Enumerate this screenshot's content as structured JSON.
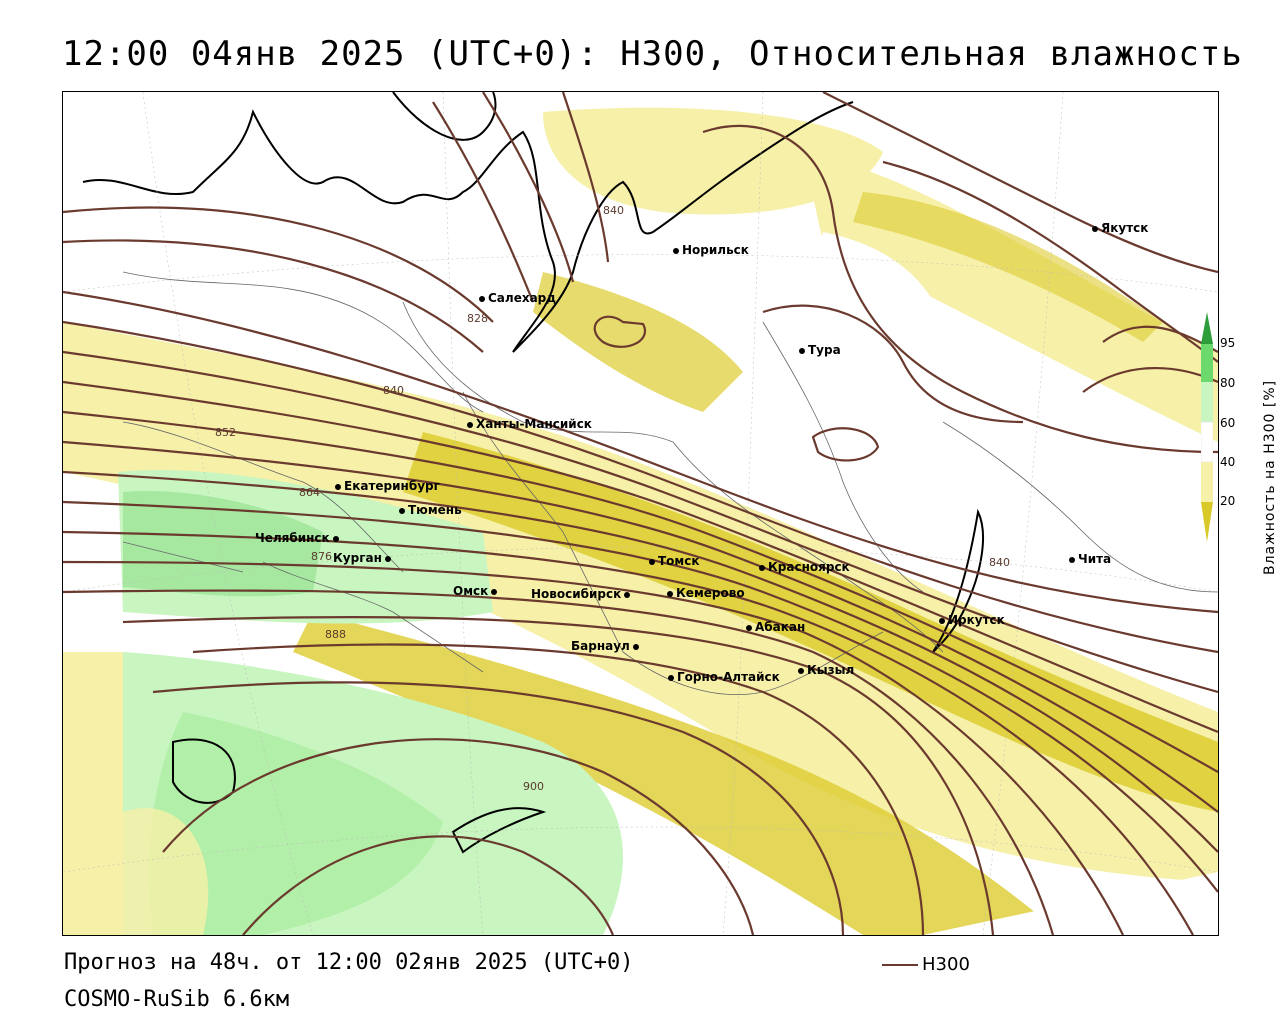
{
  "title": "12:00 04янв 2025 (UTC+0): H300, Относительная влажность",
  "footer": {
    "forecast": "Прогноз на 48ч. от 12:00 02янв 2025 (UTC+0)",
    "model": "COSMO-RuSib 6.6км",
    "legend_label": "H300"
  },
  "colorbar": {
    "title": "Влажность на H300 [%]",
    "ticks": [
      "95",
      "80",
      "60",
      "40",
      "20"
    ],
    "colors": {
      "c95": "#2e9e3a",
      "c80": "#6cd96c",
      "c60": "#c8f5c0",
      "c40": "#ffffff",
      "c20": "#f6f0a8",
      "c0": "#d8c828"
    }
  },
  "contour_labels": [
    "840",
    "828",
    "840",
    "852",
    "864",
    "876",
    "888",
    "900",
    "840"
  ],
  "cities": [
    {
      "name": "Норильск"
    },
    {
      "name": "Якутск"
    },
    {
      "name": "Салехард"
    },
    {
      "name": "Тура"
    },
    {
      "name": "Ханты-Мансийск"
    },
    {
      "name": "Екатеринбург"
    },
    {
      "name": "Тюмень"
    },
    {
      "name": "Челябинск"
    },
    {
      "name": "Курган"
    },
    {
      "name": "Омск"
    },
    {
      "name": "Новосибирск"
    },
    {
      "name": "Томск"
    },
    {
      "name": "Кемерово"
    },
    {
      "name": "Красноярск"
    },
    {
      "name": "Абакан"
    },
    {
      "name": "Барнаул"
    },
    {
      "name": "Горно-Алтайск"
    },
    {
      "name": "Кызыл"
    },
    {
      "name": "Иркутск"
    },
    {
      "name": "Чита"
    }
  ],
  "colors": {
    "contour": "#6b3a2e",
    "coast": "#000000",
    "border": "#555555"
  }
}
